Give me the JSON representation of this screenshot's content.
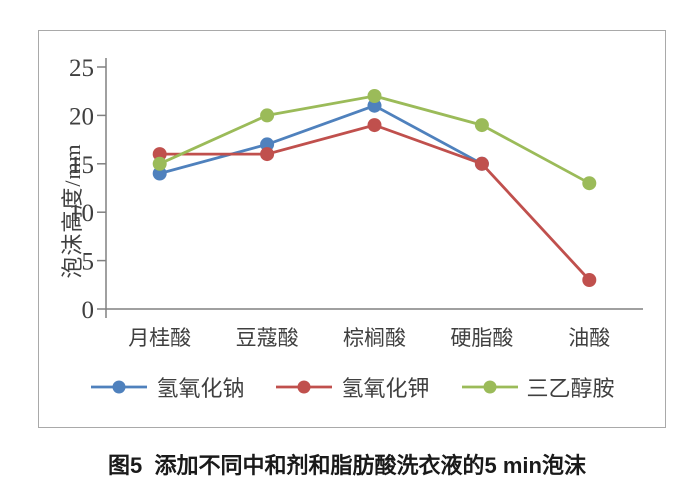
{
  "caption": "图5  添加不同中和剂和脂肪酸洗衣液的5 min泡沫",
  "chart_data": {
    "type": "line",
    "title": "",
    "xlabel": "",
    "ylabel": "泡沫高度/mm",
    "categories": [
      "月桂酸",
      "豆蔻酸",
      "棕榈酸",
      "硬脂酸",
      "油酸"
    ],
    "series": [
      {
        "name": "氢氧化钠",
        "color": "#4f81bd",
        "values": [
          14,
          17,
          21,
          15,
          null
        ]
      },
      {
        "name": "氢氧化钾",
        "color": "#c0504d",
        "values": [
          16,
          16,
          19,
          15,
          3
        ]
      },
      {
        "name": "三乙醇胺",
        "color": "#9bbb59",
        "values": [
          15,
          20,
          22,
          19,
          13
        ]
      }
    ],
    "ylim": [
      0,
      25
    ],
    "ytick_step": 5,
    "yticks": [
      0,
      5,
      10,
      15,
      20,
      25
    ],
    "grid": false,
    "legend_position": "bottom",
    "axis_color": "#808080",
    "text_color": "#3f3f3f",
    "frame_border_color": "#a9a9a9"
  }
}
